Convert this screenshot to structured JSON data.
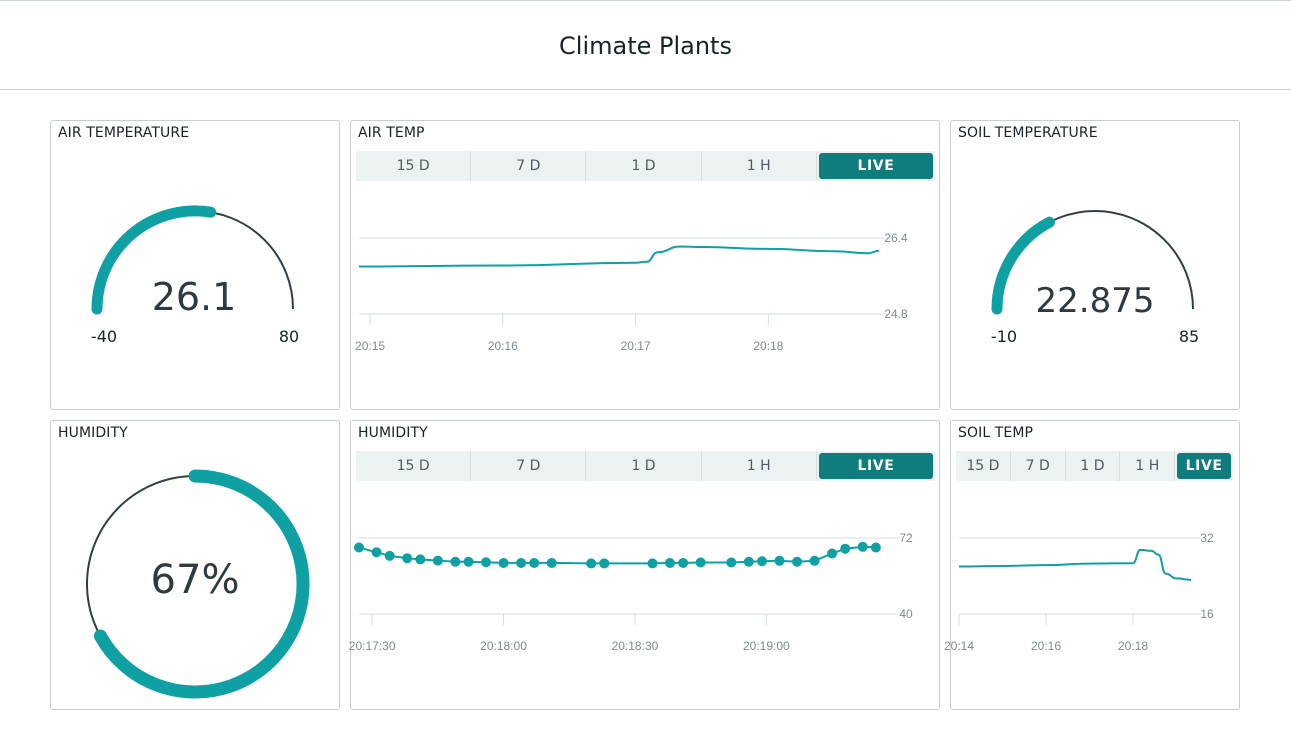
{
  "header": {
    "title": "Climate Plants"
  },
  "colors": {
    "accent": "#0fa0a3",
    "accent_dark": "#0f7d7e",
    "track": "#333e44",
    "grid": "#d5dde0"
  },
  "tabs": [
    "15 D",
    "7 D",
    "1 D",
    "1 H",
    "LIVE"
  ],
  "active_tab": "LIVE",
  "air_temperature_gauge": {
    "title": "AIR TEMPERATURE",
    "value": 26.1,
    "value_text": "26.1",
    "min": -40,
    "min_text": "-40",
    "max": 80,
    "max_text": "80"
  },
  "soil_temperature_gauge": {
    "title": "SOIL TEMPERATURE",
    "value": 22.875,
    "value_text": "22.875",
    "min": -10,
    "min_text": "-10",
    "max": 85,
    "max_text": "85"
  },
  "humidity_gauge": {
    "title": "HUMIDITY",
    "value": 67,
    "value_text": "67%"
  },
  "air_temp_chart": {
    "title": "AIR TEMP"
  },
  "humidity_chart": {
    "title": "HUMIDITY"
  },
  "soil_temp_chart": {
    "title": "SOIL TEMP"
  },
  "chart_data": [
    {
      "type": "line",
      "title": "AIR TEMP",
      "x_ticks": [
        "20:15",
        "20:16",
        "20:17",
        "20:18"
      ],
      "y_ticks": [
        "26.4",
        "24.8"
      ],
      "ylim": [
        24.8,
        26.4
      ],
      "xlim": [
        "20:14:55",
        "20:18:50"
      ],
      "series": [
        {
          "x": [
            "20:14:55",
            "20:16:00",
            "20:17:00",
            "20:17:05",
            "20:17:10",
            "20:17:20",
            "20:17:30",
            "20:18:00",
            "20:18:30",
            "20:18:45",
            "20:18:50"
          ],
          "y": [
            25.8,
            25.82,
            25.88,
            25.9,
            26.1,
            26.22,
            26.21,
            26.17,
            26.12,
            26.08,
            26.13
          ]
        }
      ],
      "grid": true
    },
    {
      "type": "line",
      "title": "HUMIDITY",
      "x_ticks": [
        "20:17:30",
        "20:18:00",
        "20:18:30",
        "20:19:00"
      ],
      "y_ticks": [
        "72",
        "40"
      ],
      "ylim": [
        40,
        72
      ],
      "xlim": [
        "20:17:27",
        "20:19:28"
      ],
      "markers": true,
      "series": [
        {
          "x": [
            "20:17:27",
            "20:17:31",
            "20:17:34",
            "20:17:38",
            "20:17:41",
            "20:17:45",
            "20:17:49",
            "20:17:52",
            "20:17:56",
            "20:18:00",
            "20:18:04",
            "20:18:07",
            "20:18:11",
            "20:18:20",
            "20:18:23",
            "20:18:34",
            "20:18:38",
            "20:18:41",
            "20:18:45",
            "20:18:52",
            "20:18:56",
            "20:18:59",
            "20:19:03",
            "20:19:07",
            "20:19:11",
            "20:19:15",
            "20:19:18",
            "20:19:22",
            "20:19:25"
          ],
          "y": [
            68,
            66,
            64.5,
            63.5,
            63,
            62.5,
            62,
            62,
            61.8,
            61.5,
            61.5,
            61.5,
            61.5,
            61.3,
            61.3,
            61.3,
            61.5,
            61.5,
            61.7,
            61.7,
            62,
            62.2,
            62.4,
            62,
            62.4,
            65.5,
            67.5,
            68.3,
            68
          ]
        }
      ],
      "grid": true
    },
    {
      "type": "line",
      "title": "SOIL TEMP",
      "x_ticks": [
        "20:14",
        "20:16",
        "20:18"
      ],
      "y_ticks": [
        "32",
        "16"
      ],
      "ylim": [
        16,
        32
      ],
      "xlim": [
        "20:14:00",
        "20:19:20"
      ],
      "series": [
        {
          "x": [
            "20:14:00",
            "20:15:00",
            "20:16:00",
            "20:17:00",
            "20:18:00",
            "20:18:10",
            "20:18:25",
            "20:18:35",
            "20:18:45",
            "20:19:00",
            "20:19:20"
          ],
          "y": [
            26,
            26.1,
            26.3,
            26.6,
            26.7,
            29.5,
            29.3,
            28.5,
            24.5,
            23.5,
            23.2
          ]
        }
      ],
      "grid": true
    }
  ]
}
